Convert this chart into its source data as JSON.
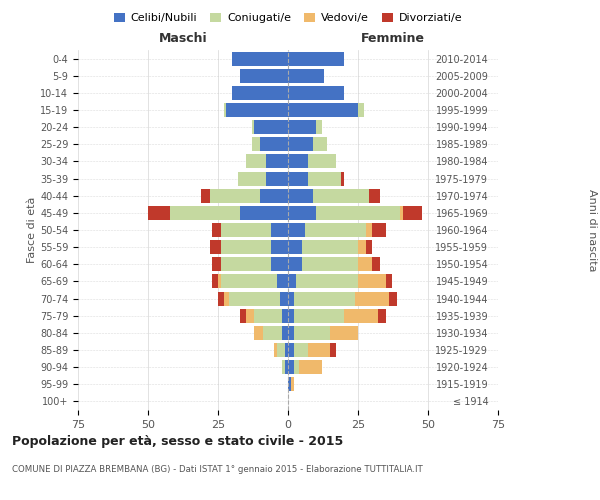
{
  "age_groups": [
    "100+",
    "95-99",
    "90-94",
    "85-89",
    "80-84",
    "75-79",
    "70-74",
    "65-69",
    "60-64",
    "55-59",
    "50-54",
    "45-49",
    "40-44",
    "35-39",
    "30-34",
    "25-29",
    "20-24",
    "15-19",
    "10-14",
    "5-9",
    "0-4"
  ],
  "birth_years": [
    "≤ 1914",
    "1915-1919",
    "1920-1924",
    "1925-1929",
    "1930-1934",
    "1935-1939",
    "1940-1944",
    "1945-1949",
    "1950-1954",
    "1955-1959",
    "1960-1964",
    "1965-1969",
    "1970-1974",
    "1975-1979",
    "1980-1984",
    "1985-1989",
    "1990-1994",
    "1995-1999",
    "2000-2004",
    "2005-2009",
    "2010-2014"
  ],
  "colors": {
    "celibi": "#4472c4",
    "coniugati": "#c5d9a0",
    "vedovi": "#f0b96b",
    "divorziati": "#c0392b"
  },
  "maschi": {
    "celibi": [
      0,
      0,
      1,
      1,
      2,
      2,
      3,
      4,
      6,
      6,
      6,
      17,
      10,
      8,
      8,
      10,
      12,
      22,
      20,
      17,
      20
    ],
    "coniugati": [
      0,
      0,
      1,
      3,
      7,
      10,
      18,
      20,
      18,
      18,
      18,
      25,
      18,
      10,
      7,
      3,
      1,
      1,
      0,
      0,
      0
    ],
    "vedovi": [
      0,
      0,
      0,
      1,
      3,
      3,
      2,
      1,
      0,
      0,
      0,
      0,
      0,
      0,
      0,
      0,
      0,
      0,
      0,
      0,
      0
    ],
    "divorziati": [
      0,
      0,
      0,
      0,
      0,
      2,
      2,
      2,
      3,
      4,
      3,
      8,
      3,
      0,
      0,
      0,
      0,
      0,
      0,
      0,
      0
    ]
  },
  "femmine": {
    "celibi": [
      0,
      1,
      2,
      2,
      2,
      2,
      2,
      3,
      5,
      5,
      6,
      10,
      9,
      7,
      7,
      9,
      10,
      25,
      20,
      13,
      20
    ],
    "coniugati": [
      0,
      0,
      2,
      5,
      13,
      18,
      22,
      22,
      20,
      20,
      22,
      30,
      20,
      12,
      10,
      5,
      2,
      2,
      0,
      0,
      0
    ],
    "vedovi": [
      0,
      1,
      8,
      8,
      10,
      12,
      12,
      10,
      5,
      3,
      2,
      1,
      0,
      0,
      0,
      0,
      0,
      0,
      0,
      0,
      0
    ],
    "divorziati": [
      0,
      0,
      0,
      2,
      0,
      3,
      3,
      2,
      3,
      2,
      5,
      7,
      4,
      1,
      0,
      0,
      0,
      0,
      0,
      0,
      0
    ]
  },
  "xlim": 75,
  "title": "Popolazione per età, sesso e stato civile - 2015",
  "subtitle": "COMUNE DI PIAZZA BREMBANA (BG) - Dati ISTAT 1° gennaio 2015 - Elaborazione TUTTITALIA.IT",
  "ylabel_left": "Fasce di età",
  "ylabel_right": "Anni di nascita",
  "xlabel_left": "Maschi",
  "xlabel_right": "Femmine",
  "background_color": "#ffffff",
  "grid_color": "#cccccc"
}
